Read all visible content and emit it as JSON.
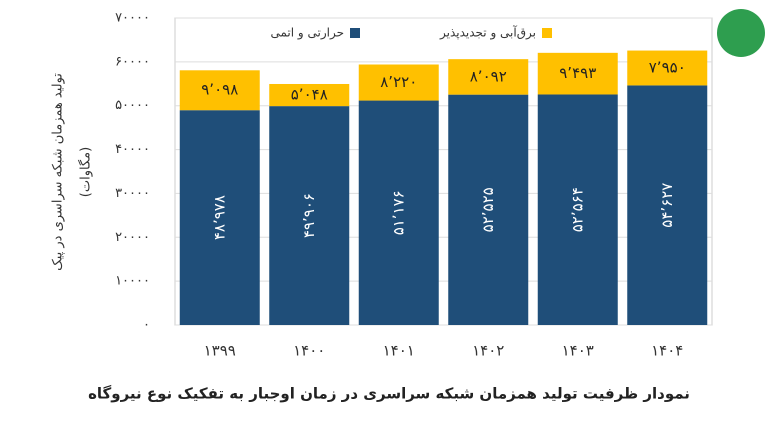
{
  "chart_data": {
    "type": "stacked-bar",
    "title": "نمودار ظرفیت تولید همزمان شبکه سراسری در زمان اوجبار به تفکیک نوع نیروگاه",
    "y_label": [
      "تولید همزمان شبکه سراسری در پیک",
      "(مگاوات)"
    ],
    "categories": [
      "۱۳۹۹",
      "۱۴۰۰",
      "۱۴۰۱",
      "۱۴۰۲",
      "۱۴۰۳",
      "۱۴۰۴"
    ],
    "series": [
      {
        "name": "حرارتی و اتمی",
        "color": "#1f4e79",
        "values": [
          48978,
          49906,
          51176,
          52525,
          52564,
          54627
        ],
        "value_labels": [
          "۴۸٬۹۷۸",
          "۴۹٬۹۰۶",
          "۵۱٬۱۷۶",
          "۵۲٬۵۲۵",
          "۵۲٬۵۶۴",
          "۵۴٬۶۲۷"
        ]
      },
      {
        "name": "برق‌آبی و تجدیدپذیر",
        "color": "#ffc000",
        "values": [
          9098,
          5048,
          8220,
          8092,
          9493,
          7950
        ],
        "value_labels": [
          "۹٬۰۹۸",
          "۵٬۰۴۸",
          "۸٬۲۲۰",
          "۸٬۰۹۲",
          "۹٬۴۹۳",
          "۷٬۹۵۰"
        ]
      }
    ],
    "ylim": [
      0,
      70000
    ],
    "yticks": [
      {
        "value": 0,
        "label": "۰"
      },
      {
        "value": 10000,
        "label": "۱۰۰۰۰"
      },
      {
        "value": 20000,
        "label": "۲۰۰۰۰"
      },
      {
        "value": 30000,
        "label": "۳۰۰۰۰"
      },
      {
        "value": 40000,
        "label": "۴۰۰۰۰"
      },
      {
        "value": 50000,
        "label": "۵۰۰۰۰"
      },
      {
        "value": 60000,
        "label": "۶۰۰۰۰"
      },
      {
        "value": 70000,
        "label": "۷۰۰۰۰"
      }
    ],
    "grid": true,
    "legend": "top"
  }
}
